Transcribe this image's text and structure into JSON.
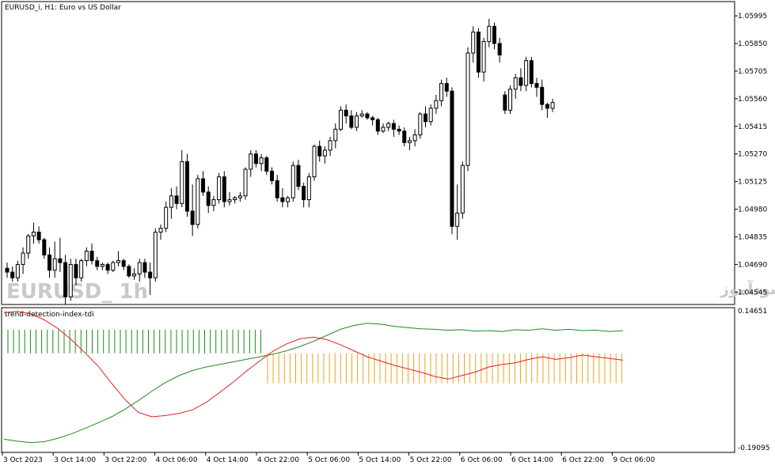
{
  "chart": {
    "header": "EURUSD_i, H1:  Euro vs US Dollar",
    "watermark_symbol": "EURUSD_ 1h",
    "watermark_text": "انتشار در سایت سودآموز",
    "up_color": "#ffffff",
    "down_color": "#000000",
    "wick_color": "#000000"
  },
  "indicator": {
    "name": "trend-detection-index-tdi",
    "top_value": "0.14651",
    "bottom_value": "-0.19095",
    "green_color": "#1e8a1e",
    "red_color": "#e02020",
    "orange_color": "#f0a020"
  },
  "price_axis": [
    "1.05995",
    "1.05850",
    "1.05705",
    "1.05560",
    "1.05415",
    "1.05270",
    "1.05125",
    "1.04980",
    "1.04835",
    "1.04690",
    "1.04545"
  ],
  "time_axis": [
    "3 Oct 2023",
    "3 Oct 14:00",
    "3 Oct 22:00",
    "4 Oct 06:00",
    "4 Oct 14:00",
    "4 Oct 22:00",
    "5 Oct 06:00",
    "5 Oct 14:00",
    "5 Oct 22:00",
    "6 Oct 06:00",
    "6 Oct 14:00",
    "6 Oct 22:00",
    "9 Oct 06:00"
  ],
  "chart_data": {
    "type": "candlestick",
    "ylim": [
      1.0448,
      1.0607
    ],
    "ohlc": [
      [
        1.0467,
        1.047,
        1.0462,
        1.0465
      ],
      [
        1.0465,
        1.0468,
        1.046,
        1.0462
      ],
      [
        1.0462,
        1.0471,
        1.046,
        1.0469
      ],
      [
        1.0469,
        1.0478,
        1.0464,
        1.0475
      ],
      [
        1.0475,
        1.0485,
        1.0472,
        1.0484
      ],
      [
        1.0484,
        1.0491,
        1.048,
        1.0486
      ],
      [
        1.0486,
        1.0489,
        1.048,
        1.0482
      ],
      [
        1.0482,
        1.0483,
        1.0472,
        1.0474
      ],
      [
        1.0474,
        1.0478,
        1.0462,
        1.0466
      ],
      [
        1.0466,
        1.0481,
        1.0462,
        1.0472
      ],
      [
        1.0472,
        1.0483,
        1.0465,
        1.047
      ],
      [
        1.047,
        1.0474,
        1.0448,
        1.0452
      ],
      [
        1.0452,
        1.0472,
        1.045,
        1.0469
      ],
      [
        1.0469,
        1.0472,
        1.0458,
        1.0462
      ],
      [
        1.0462,
        1.0472,
        1.046,
        1.0471
      ],
      [
        1.0471,
        1.0478,
        1.0468,
        1.0476
      ],
      [
        1.0476,
        1.048,
        1.0469,
        1.0471
      ],
      [
        1.0471,
        1.0473,
        1.0466,
        1.0468
      ],
      [
        1.0468,
        1.047,
        1.0466,
        1.0469
      ],
      [
        1.0469,
        1.047,
        1.0464,
        1.0466
      ],
      [
        1.0466,
        1.0471,
        1.0465,
        1.047
      ],
      [
        1.047,
        1.0476,
        1.0468,
        1.0471
      ],
      [
        1.0471,
        1.0472,
        1.0466,
        1.0468
      ],
      [
        1.0468,
        1.0469,
        1.0462,
        1.0463
      ],
      [
        1.0463,
        1.0467,
        1.0461,
        1.0464
      ],
      [
        1.0464,
        1.0472,
        1.046,
        1.047
      ],
      [
        1.047,
        1.0472,
        1.0462,
        1.0465
      ],
      [
        1.0465,
        1.047,
        1.0453,
        1.0462
      ],
      [
        1.0462,
        1.0488,
        1.046,
        1.0486
      ],
      [
        1.0486,
        1.049,
        1.0482,
        1.0488
      ],
      [
        1.0488,
        1.0502,
        1.0486,
        1.0499
      ],
      [
        1.0499,
        1.0509,
        1.0493,
        1.0505
      ],
      [
        1.0505,
        1.051,
        1.0498,
        1.0501
      ],
      [
        1.0501,
        1.0529,
        1.0499,
        1.0523
      ],
      [
        1.0523,
        1.0527,
        1.0494,
        1.0497
      ],
      [
        1.0497,
        1.0511,
        1.0484,
        1.049
      ],
      [
        1.049,
        1.0516,
        1.0488,
        1.0514
      ],
      [
        1.0514,
        1.0518,
        1.0505,
        1.0507
      ],
      [
        1.0507,
        1.051,
        1.0496,
        1.05
      ],
      [
        1.05,
        1.0505,
        1.0497,
        1.0503
      ],
      [
        1.0503,
        1.0517,
        1.0501,
        1.0515
      ],
      [
        1.0515,
        1.0518,
        1.0499,
        1.0502
      ],
      [
        1.0502,
        1.0507,
        1.05,
        1.0503
      ],
      [
        1.0503,
        1.0505,
        1.0501,
        1.0504
      ],
      [
        1.0504,
        1.0507,
        1.0502,
        1.0505
      ],
      [
        1.0505,
        1.052,
        1.0503,
        1.0519
      ],
      [
        1.0519,
        1.0529,
        1.0515,
        1.0527
      ],
      [
        1.0527,
        1.0529,
        1.052,
        1.0522
      ],
      [
        1.0522,
        1.0527,
        1.0518,
        1.0525
      ],
      [
        1.0525,
        1.0526,
        1.0516,
        1.0518
      ],
      [
        1.0518,
        1.052,
        1.0511,
        1.0513
      ],
      [
        1.0513,
        1.0516,
        1.0502,
        1.0504
      ],
      [
        1.0504,
        1.0509,
        1.0499,
        1.0502
      ],
      [
        1.0502,
        1.0505,
        1.0499,
        1.0504
      ],
      [
        1.0504,
        1.0523,
        1.0502,
        1.0521
      ],
      [
        1.0521,
        1.0524,
        1.0508,
        1.051
      ],
      [
        1.051,
        1.0512,
        1.0499,
        1.0503
      ],
      [
        1.0503,
        1.0517,
        1.0499,
        1.0515
      ],
      [
        1.0515,
        1.0532,
        1.0513,
        1.0531
      ],
      [
        1.0531,
        1.0534,
        1.0523,
        1.0526
      ],
      [
        1.0526,
        1.0531,
        1.0522,
        1.0529
      ],
      [
        1.0529,
        1.0536,
        1.0526,
        1.0534
      ],
      [
        1.0534,
        1.0543,
        1.053,
        1.054
      ],
      [
        1.054,
        1.0552,
        1.0539,
        1.055
      ],
      [
        1.055,
        1.0553,
        1.0543,
        1.0547
      ],
      [
        1.0547,
        1.055,
        1.054,
        1.0541
      ],
      [
        1.0541,
        1.0549,
        1.0539,
        1.0547
      ],
      [
        1.0547,
        1.055,
        1.0546,
        1.0548
      ],
      [
        1.0548,
        1.0549,
        1.0545,
        1.0546
      ],
      [
        1.0546,
        1.0547,
        1.0542,
        1.0545
      ],
      [
        1.0545,
        1.0546,
        1.0537,
        1.0539
      ],
      [
        1.0539,
        1.0543,
        1.0538,
        1.0541
      ],
      [
        1.0541,
        1.0544,
        1.0539,
        1.0543
      ],
      [
        1.0543,
        1.0545,
        1.0536,
        1.054
      ],
      [
        1.054,
        1.0542,
        1.0537,
        1.0539
      ],
      [
        1.0539,
        1.0541,
        1.0531,
        1.0533
      ],
      [
        1.0533,
        1.0536,
        1.0529,
        1.0534
      ],
      [
        1.0534,
        1.054,
        1.0531,
        1.0537
      ],
      [
        1.0537,
        1.0549,
        1.0535,
        1.0548
      ],
      [
        1.0548,
        1.0552,
        1.0541,
        1.0544
      ],
      [
        1.0544,
        1.0553,
        1.0542,
        1.0551
      ],
      [
        1.0551,
        1.0558,
        1.0548,
        1.0555
      ],
      [
        1.0555,
        1.0566,
        1.0552,
        1.0564
      ],
      [
        1.0564,
        1.0567,
        1.0557,
        1.056
      ],
      [
        1.056,
        1.0562,
        1.0485,
        1.0489
      ],
      [
        1.0489,
        1.0511,
        1.0482,
        1.0496
      ],
      [
        1.0496,
        1.0523,
        1.0493,
        1.0521
      ],
      [
        1.0521,
        1.0583,
        1.0518,
        1.058
      ],
      [
        1.058,
        1.0594,
        1.0575,
        1.0591
      ],
      [
        1.0591,
        1.0593,
        1.0567,
        1.057
      ],
      [
        1.057,
        1.0588,
        1.0565,
        1.0586
      ],
      [
        1.0586,
        1.0598,
        1.0583,
        1.0594
      ],
      [
        1.0594,
        1.0596,
        1.0582,
        1.0585
      ],
      [
        1.0585,
        1.0588,
        1.0575,
        1.0579
      ],
      [
        1.0558,
        1.056,
        1.0548,
        1.055
      ],
      [
        1.055,
        1.0563,
        1.0548,
        1.0561
      ],
      [
        1.0561,
        1.0569,
        1.0556,
        1.0567
      ],
      [
        1.0567,
        1.0572,
        1.056,
        1.0563
      ],
      [
        1.0563,
        1.0578,
        1.056,
        1.0576
      ],
      [
        1.0576,
        1.0578,
        1.0562,
        1.0564
      ],
      [
        1.0564,
        1.0567,
        1.0557,
        1.0562
      ],
      [
        1.0562,
        1.0566,
        1.055,
        1.0553
      ],
      [
        1.0553,
        1.0554,
        1.0546,
        1.0551
      ],
      [
        1.0551,
        1.0556,
        1.0549,
        1.0554
      ]
    ],
    "tdi_ylim": [
      -0.19095,
      0.14651
    ],
    "tdi_green": [
      -0.16,
      -0.165,
      -0.168,
      -0.166,
      -0.158,
      -0.148,
      -0.135,
      -0.122,
      -0.108,
      -0.09,
      -0.07,
      -0.048,
      -0.028,
      -0.012,
      0.0,
      0.008,
      0.014,
      0.02,
      0.026,
      0.032,
      0.038,
      0.046,
      0.056,
      0.068,
      0.082,
      0.096,
      0.105,
      0.11,
      0.108,
      0.103,
      0.1,
      0.097,
      0.096,
      0.094,
      0.095,
      0.092,
      0.093,
      0.091,
      0.095,
      0.094,
      0.097,
      0.094,
      0.096,
      0.093,
      0.094,
      0.091,
      0.093
    ],
    "tdi_red": [
      0.135,
      0.138,
      0.132,
      0.118,
      0.098,
      0.072,
      0.042,
      0.01,
      -0.03,
      -0.068,
      -0.098,
      -0.108,
      -0.105,
      -0.1,
      -0.092,
      -0.075,
      -0.052,
      -0.028,
      -0.002,
      0.022,
      0.045,
      0.062,
      0.074,
      0.078,
      0.072,
      0.06,
      0.046,
      0.032,
      0.022,
      0.012,
      0.004,
      -0.004,
      -0.014,
      -0.02,
      -0.012,
      -0.004,
      0.008,
      0.014,
      0.018,
      0.026,
      0.032,
      0.026,
      0.03,
      0.036,
      0.032,
      0.028,
      0.024
    ],
    "tdi_green_bars": {
      "from": 0,
      "to": 26,
      "level_top": 0.095,
      "level_bottom": 0.04
    },
    "tdi_orange_bars": {
      "from": 27,
      "to": 46,
      "level_top": 0.04,
      "level_bottom": -0.03
    }
  }
}
